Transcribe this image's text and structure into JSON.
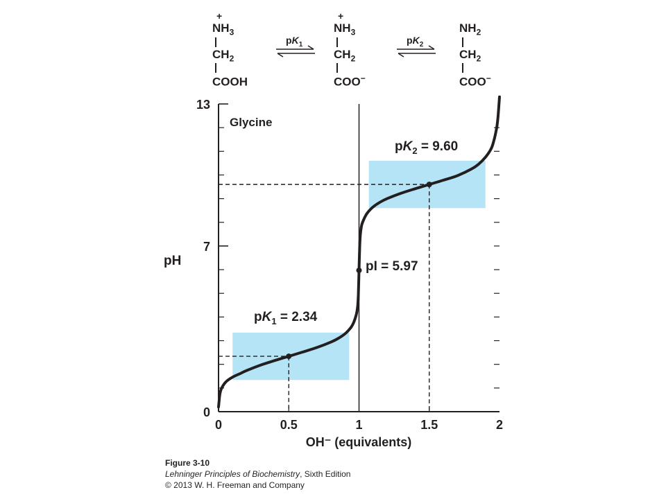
{
  "reaction": {
    "species": [
      {
        "top_group": "NH",
        "top_sub": "3",
        "charge": "+",
        "middle": "CH",
        "middle_sub": "2",
        "bottom": "COOH",
        "bottom_charge": ""
      },
      {
        "top_group": "NH",
        "top_sub": "3",
        "charge": "+",
        "middle": "CH",
        "middle_sub": "2",
        "bottom": "COO",
        "bottom_charge": "−"
      },
      {
        "top_group": "NH",
        "top_sub": "2",
        "charge": "",
        "middle": "CH",
        "middle_sub": "2",
        "bottom": "COO",
        "bottom_charge": "−"
      }
    ],
    "arrows": [
      {
        "p": "p",
        "K": "K",
        "sub": "1"
      },
      {
        "p": "p",
        "K": "K",
        "sub": "2"
      }
    ]
  },
  "chart_data": {
    "type": "line",
    "title": "Glycine",
    "xlabel": "OH⁻ (equivalents)",
    "ylabel": "pH",
    "xlim": [
      0,
      2
    ],
    "ylim": [
      0,
      13
    ],
    "x_ticks": [
      "0",
      "0.5",
      "1",
      "1.5",
      "2"
    ],
    "y_ticks": [
      "0",
      "7",
      "13"
    ],
    "series": [
      {
        "x": [
          0,
          0.005,
          0.01,
          0.02,
          0.04,
          0.06,
          0.1,
          0.15,
          0.2,
          0.3,
          0.4,
          0.5,
          0.6,
          0.7,
          0.8,
          0.85,
          0.9,
          0.94,
          0.96,
          0.98,
          0.99,
          0.995,
          1.0,
          1.005,
          1.01,
          1.02,
          1.04,
          1.06,
          1.1,
          1.15,
          1.2,
          1.3,
          1.4,
          1.5,
          1.6,
          1.7,
          1.8,
          1.85,
          1.9,
          1.94,
          1.96,
          1.98,
          1.99,
          2.0
        ],
        "y": [
          0.2,
          0.5,
          0.75,
          0.97,
          1.17,
          1.3,
          1.46,
          1.6,
          1.74,
          1.97,
          2.16,
          2.34,
          2.52,
          2.71,
          2.94,
          3.09,
          3.29,
          3.54,
          3.74,
          4.09,
          4.44,
          4.9,
          5.97,
          7.0,
          7.5,
          7.9,
          8.2,
          8.4,
          8.65,
          8.85,
          9.0,
          9.23,
          9.42,
          9.6,
          9.78,
          9.97,
          10.25,
          10.45,
          10.75,
          11.1,
          11.45,
          12.0,
          12.5,
          13.3
        ]
      }
    ],
    "buffer_regions": [
      {
        "x_range": [
          0.1,
          0.93
        ],
        "y_range": [
          1.34,
          3.34
        ]
      },
      {
        "x_range": [
          1.07,
          1.9
        ],
        "y_range": [
          8.6,
          10.6
        ]
      }
    ],
    "points": [
      {
        "x": 0.5,
        "y": 2.34,
        "label_p": "p",
        "label_K": "K",
        "label_sub": "1",
        "label_value": " = 2.34"
      },
      {
        "x": 1.0,
        "y": 5.97,
        "label_p": "pI",
        "label_K": "",
        "label_sub": "",
        "label_value": " = 5.97"
      },
      {
        "x": 1.5,
        "y": 9.6,
        "label_p": "p",
        "label_K": "K",
        "label_sub": "2",
        "label_value": " = 9.60"
      }
    ],
    "vertical_line_x": 1,
    "colors": {
      "curve": "#231f20",
      "buffer": "#b5e4f7",
      "axis": "#231f20"
    }
  },
  "caption": {
    "figure": "Figure 3-10",
    "book": "Lehninger Principles of Biochemistry",
    "edition": ", Sixth Edition",
    "copyright": "© 2013 W. H. Freeman and Company"
  }
}
